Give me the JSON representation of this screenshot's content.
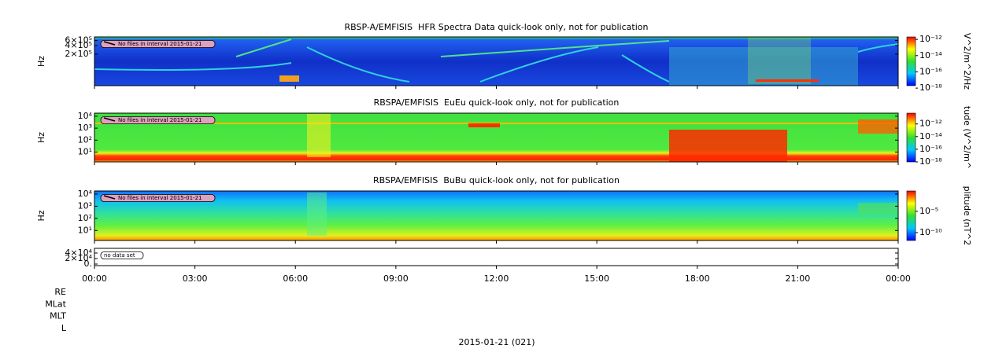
{
  "chart_data": [
    {
      "type": "spectrogram",
      "title": "RBSP-A/EMFISIS  HFR Spectra Data quick-look only, not for publication",
      "y_label": "Hz",
      "log_scale": true,
      "ylim": [
        16000,
        800000
      ],
      "yticks": [
        {
          "value": 600000,
          "label": "6×10⁵"
        },
        {
          "value": 400000,
          "label": "4×10⁵"
        },
        {
          "value": 200000,
          "label": "2×10⁵"
        }
      ],
      "colorbar_label": "V^2/m^2/Hz",
      "clim": [
        2e-18,
        2e-12
      ],
      "colorbar_ticks": [
        {
          "value": 1e-12,
          "label": "10⁻¹²"
        },
        {
          "value": 1e-14,
          "label": "10⁻¹⁴"
        },
        {
          "value": 1e-16,
          "label": "10⁻¹⁶"
        },
        {
          "value": 1e-18,
          "label": "10⁻¹⁸"
        }
      ],
      "annotation": "No files in interval 2015-01-21"
    },
    {
      "type": "spectrogram",
      "title": "RBSPA/EMFISIS  EuEu quick-look only, not for publication",
      "y_label": "Hz",
      "log_scale": true,
      "ylim": [
        1.5,
        18000
      ],
      "yticks": [
        {
          "value": 10000,
          "label": "10⁴"
        },
        {
          "value": 1000,
          "label": "10³"
        },
        {
          "value": 100,
          "label": "10²"
        },
        {
          "value": 10,
          "label": "10¹"
        }
      ],
      "colorbar_label": "tude (V^2/m^",
      "clim": [
        1e-18,
        5e-11
      ],
      "colorbar_ticks": [
        {
          "value": 1e-12,
          "label": "10⁻¹²"
        },
        {
          "value": 1e-14,
          "label": "10⁻¹⁴"
        },
        {
          "value": 1e-16,
          "label": "10⁻¹⁶"
        },
        {
          "value": 1e-18,
          "label": "10⁻¹⁸"
        }
      ],
      "annotation": "No files in interval 2015-01-21"
    },
    {
      "type": "spectrogram",
      "title": "RBSPA/EMFISIS  BuBu quick-look only, not for publication",
      "y_label": "Hz",
      "log_scale": true,
      "ylim": [
        1.5,
        18000
      ],
      "yticks": [
        {
          "value": 10000,
          "label": "10⁴"
        },
        {
          "value": 1000,
          "label": "10³"
        },
        {
          "value": 100,
          "label": "10²"
        },
        {
          "value": 10,
          "label": "10¹"
        }
      ],
      "colorbar_label": "plitude (nT^2",
      "clim": [
        1.4e-12,
        0.6
      ],
      "colorbar_ticks": [
        {
          "value": 1e-05,
          "label": "10⁻⁵"
        },
        {
          "value": 1e-10,
          "label": "10⁻¹⁰"
        }
      ],
      "annotation": "No files in interval 2015-01-21"
    },
    {
      "type": "empty",
      "log_scale": false,
      "ylim": [
        -5700,
        57000
      ],
      "yticks": [
        {
          "value": 40000,
          "label": "4×10⁴"
        },
        {
          "value": 20000,
          "label": "2×10⁴"
        },
        {
          "value": 0,
          "label": "0."
        }
      ],
      "annotation": "no data set",
      "xlim": [
        0,
        24
      ],
      "xticks": [
        {
          "value": 0,
          "label": "00:00"
        },
        {
          "value": 3,
          "label": "03:00"
        },
        {
          "value": 6,
          "label": "06:00"
        },
        {
          "value": 9,
          "label": "09:00"
        },
        {
          "value": 12,
          "label": "12:00"
        },
        {
          "value": 15,
          "label": "15:00"
        },
        {
          "value": 18,
          "label": "18:00"
        },
        {
          "value": 21,
          "label": "21:00"
        },
        {
          "value": 24,
          "label": "00:00"
        }
      ],
      "ephemeris_labels": [
        "RE",
        "MLat",
        "MLT",
        "L"
      ],
      "x_label": "2015-01-21 (021)"
    }
  ]
}
